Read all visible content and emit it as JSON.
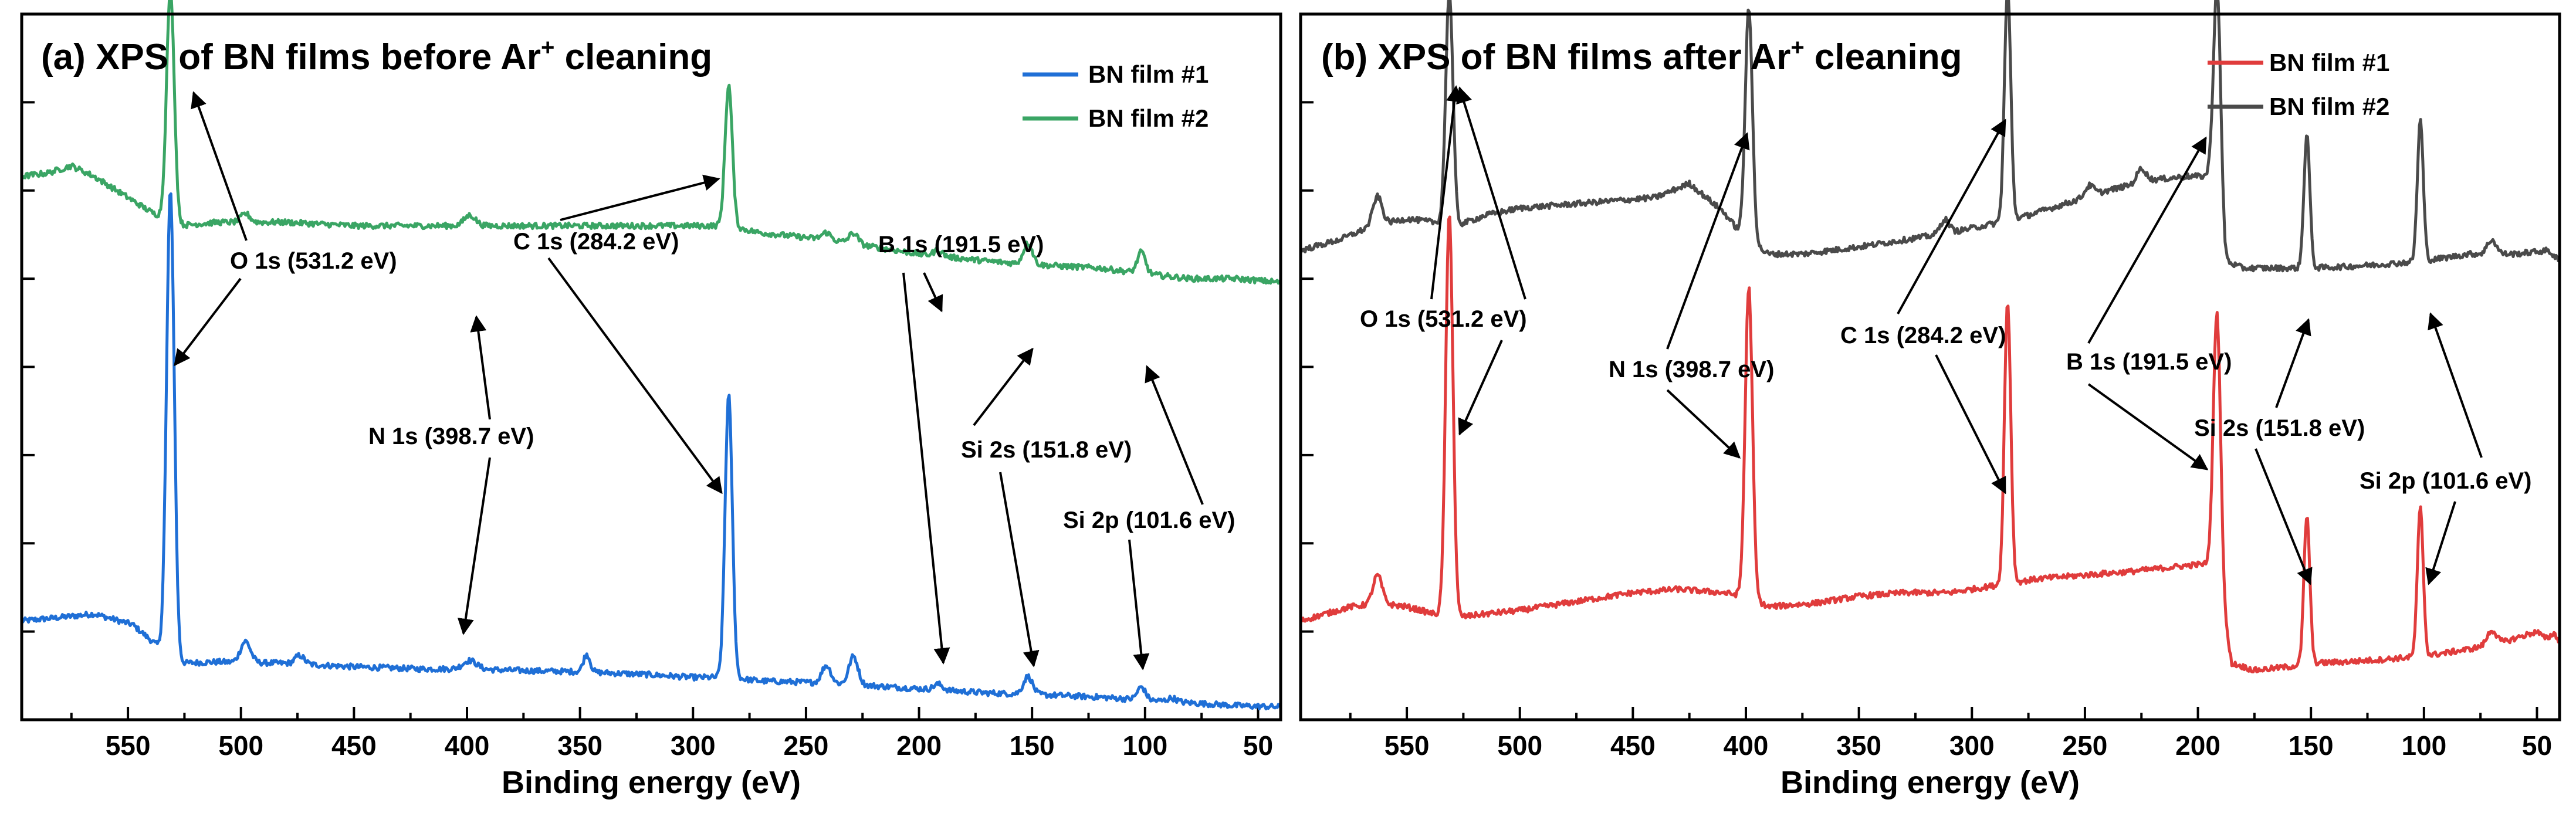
{
  "chart_data": [
    {
      "type": "line",
      "title": "(a) XPS of BN films before Ar",
      "title_sup": "+",
      "title_end": " cleaning",
      "xlabel": "Binding energy (eV)",
      "ylabel": "",
      "xlim": [
        597,
        40
      ],
      "x_reversed": true,
      "xticks": [
        550,
        500,
        450,
        400,
        350,
        300,
        250,
        200,
        150,
        100,
        50
      ],
      "y_ticks_unlabeled": true,
      "legend_position": "top-right",
      "series": [
        {
          "name": "BN film #1",
          "color": "#1f6fd6",
          "baseline": [
            [
              597,
              0.14
            ],
            [
              580,
              0.145
            ],
            [
              565,
              0.15
            ],
            [
              548,
              0.135
            ],
            [
              537,
              0.105
            ],
            [
              528,
              0.08
            ],
            [
              510,
              0.082
            ],
            [
              480,
              0.08
            ],
            [
              450,
              0.075
            ],
            [
              420,
              0.072
            ],
            [
              400,
              0.072
            ],
            [
              380,
              0.07
            ],
            [
              350,
              0.068
            ],
            [
              320,
              0.064
            ],
            [
              300,
              0.06
            ],
            [
              285,
              0.06
            ],
            [
              270,
              0.055
            ],
            [
              240,
              0.052
            ],
            [
              200,
              0.044
            ],
            [
              170,
              0.038
            ],
            [
              150,
              0.036
            ],
            [
              120,
              0.032
            ],
            [
              100,
              0.028
            ],
            [
              80,
              0.024
            ],
            [
              60,
              0.02
            ],
            [
              40,
              0.018
            ]
          ],
          "peaks": [
            [
              531.2,
              0.66,
              1.7
            ],
            [
              498,
              0.03,
              2.2
            ],
            [
              474,
              0.012,
              2.0
            ],
            [
              398.7,
              0.012,
              3.0
            ],
            [
              347,
              0.025,
              1.5
            ],
            [
              284.2,
              0.4,
              1.6
            ],
            [
              241,
              0.025,
              2.0
            ],
            [
              229,
              0.04,
              2.0
            ],
            [
              191.5,
              0.008,
              2.0
            ],
            [
              151.8,
              0.025,
              2.0
            ],
            [
              101.6,
              0.018,
              1.8
            ],
            [
              88,
              0.005,
              2.0
            ]
          ]
        },
        {
          "name": "BN film #2",
          "color": "#3aa564",
          "baseline": [
            [
              597,
              0.77
            ],
            [
              585,
              0.775
            ],
            [
              575,
              0.785
            ],
            [
              565,
              0.77
            ],
            [
              555,
              0.75
            ],
            [
              540,
              0.72
            ],
            [
              528,
              0.7
            ],
            [
              510,
              0.705
            ],
            [
              480,
              0.705
            ],
            [
              450,
              0.7
            ],
            [
              420,
              0.7
            ],
            [
              400,
              0.7
            ],
            [
              380,
              0.7
            ],
            [
              350,
              0.7
            ],
            [
              320,
              0.7
            ],
            [
              300,
              0.7
            ],
            [
              285,
              0.7
            ],
            [
              270,
              0.69
            ],
            [
              240,
              0.68
            ],
            [
              220,
              0.67
            ],
            [
              200,
              0.66
            ],
            [
              170,
              0.65
            ],
            [
              150,
              0.645
            ],
            [
              120,
              0.64
            ],
            [
              100,
              0.632
            ],
            [
              80,
              0.625
            ],
            [
              60,
              0.625
            ],
            [
              40,
              0.62
            ]
          ],
          "peaks": [
            [
              531.2,
              0.33,
              1.7
            ],
            [
              498,
              0.012,
              2.0
            ],
            [
              398.7,
              0.015,
              2.5
            ],
            [
              284.2,
              0.2,
              1.6
            ],
            [
              241,
              0.01,
              2.0
            ],
            [
              229,
              0.015,
              2.0
            ],
            [
              191.5,
              0.008,
              2.0
            ],
            [
              151.8,
              0.03,
              2.0
            ],
            [
              101.6,
              0.03,
              1.8
            ]
          ]
        }
      ],
      "annotations": [
        {
          "label": "O 1s (531.2 eV)"
        },
        {
          "label": "C 1s (284.2 eV)"
        },
        {
          "label": "B 1s (191.5 eV)"
        },
        {
          "label": "N 1s (398.7 eV)"
        },
        {
          "label": "Si 2s (151.8 eV)"
        },
        {
          "label": "Si 2p (101.6 eV)"
        }
      ]
    },
    {
      "type": "line",
      "title": "(b) XPS of BN films after Ar",
      "title_sup": "+",
      "title_end": " cleaning",
      "xlabel": "Binding energy (eV)",
      "ylabel": "",
      "xlim": [
        597,
        40
      ],
      "x_reversed": true,
      "xticks": [
        550,
        500,
        450,
        400,
        350,
        300,
        250,
        200,
        150,
        100,
        50
      ],
      "y_ticks_unlabeled": true,
      "legend_position": "top-right",
      "series": [
        {
          "name": "BN film #1",
          "color": "#e03c3c",
          "baseline": [
            [
              597,
              0.14
            ],
            [
              575,
              0.16
            ],
            [
              562,
              0.165
            ],
            [
              550,
              0.16
            ],
            [
              538,
              0.15
            ],
            [
              528,
              0.145
            ],
            [
              515,
              0.15
            ],
            [
              500,
              0.155
            ],
            [
              490,
              0.16
            ],
            [
              470,
              0.17
            ],
            [
              450,
              0.18
            ],
            [
              430,
              0.185
            ],
            [
              410,
              0.18
            ],
            [
              400,
              0.175
            ],
            [
              390,
              0.16
            ],
            [
              370,
              0.165
            ],
            [
              350,
              0.175
            ],
            [
              330,
              0.18
            ],
            [
              310,
              0.18
            ],
            [
              290,
              0.19
            ],
            [
              270,
              0.2
            ],
            [
              250,
              0.205
            ],
            [
              230,
              0.21
            ],
            [
              215,
              0.215
            ],
            [
              200,
              0.22
            ],
            [
              193,
              0.22
            ],
            [
              185,
              0.08
            ],
            [
              175,
              0.07
            ],
            [
              160,
              0.075
            ],
            [
              150,
              0.08
            ],
            [
              135,
              0.082
            ],
            [
              120,
              0.085
            ],
            [
              100,
              0.09
            ],
            [
              80,
              0.1
            ],
            [
              65,
              0.11
            ],
            [
              50,
              0.125
            ],
            [
              40,
              0.095
            ]
          ],
          "peaks": [
            [
              563,
              0.04,
              2.0
            ],
            [
              531.2,
              0.57,
              1.6
            ],
            [
              398.7,
              0.44,
              1.6
            ],
            [
              284.2,
              0.4,
              1.4
            ],
            [
              191.5,
              0.38,
              1.6
            ],
            [
              151.8,
              0.21,
              1.3
            ],
            [
              101.6,
              0.21,
              1.3
            ],
            [
              70,
              0.02,
              2.0
            ],
            [
              42,
              0.02,
              2.0
            ]
          ]
        },
        {
          "name": "BN film #2",
          "color": "#4a4a4a",
          "baseline": [
            [
              597,
              0.665
            ],
            [
              580,
              0.68
            ],
            [
              565,
              0.7
            ],
            [
              550,
              0.71
            ],
            [
              538,
              0.705
            ],
            [
              528,
              0.7
            ],
            [
              515,
              0.715
            ],
            [
              500,
              0.725
            ],
            [
              480,
              0.73
            ],
            [
              460,
              0.735
            ],
            [
              440,
              0.74
            ],
            [
              425,
              0.76
            ],
            [
              410,
              0.72
            ],
            [
              400,
              0.68
            ],
            [
              390,
              0.66
            ],
            [
              375,
              0.66
            ],
            [
              350,
              0.67
            ],
            [
              330,
              0.68
            ],
            [
              310,
              0.69
            ],
            [
              295,
              0.7
            ],
            [
              280,
              0.71
            ],
            [
              260,
              0.73
            ],
            [
              240,
              0.75
            ],
            [
              220,
              0.765
            ],
            [
              205,
              0.77
            ],
            [
              195,
              0.77
            ],
            [
              188,
              0.65
            ],
            [
              180,
              0.64
            ],
            [
              165,
              0.64
            ],
            [
              150,
              0.64
            ],
            [
              135,
              0.642
            ],
            [
              120,
              0.645
            ],
            [
              100,
              0.65
            ],
            [
              80,
              0.66
            ],
            [
              60,
              0.66
            ],
            [
              45,
              0.665
            ],
            [
              40,
              0.65
            ]
          ],
          "peaks": [
            [
              563,
              0.04,
              2.0
            ],
            [
              531.2,
              0.33,
              1.6
            ],
            [
              398.7,
              0.33,
              1.6
            ],
            [
              284.2,
              0.33,
              1.4
            ],
            [
              191.5,
              0.33,
              1.6
            ],
            [
              151.8,
              0.19,
              1.3
            ],
            [
              101.6,
              0.2,
              1.3
            ],
            [
              70,
              0.02,
              2.0
            ],
            [
              312,
              0.02,
              2.0
            ],
            [
              248,
              0.015,
              2.0
            ],
            [
              225,
              0.02,
              2.0
            ]
          ]
        }
      ],
      "annotations": [
        {
          "label": "O 1s (531.2 eV)"
        },
        {
          "label": "N 1s (398.7 eV)"
        },
        {
          "label": "C 1s (284.2 eV)"
        },
        {
          "label": "B 1s (191.5 eV)"
        },
        {
          "label": "Si 2s (151.8 eV)"
        },
        {
          "label": "Si 2p (101.6 eV)"
        }
      ]
    }
  ]
}
